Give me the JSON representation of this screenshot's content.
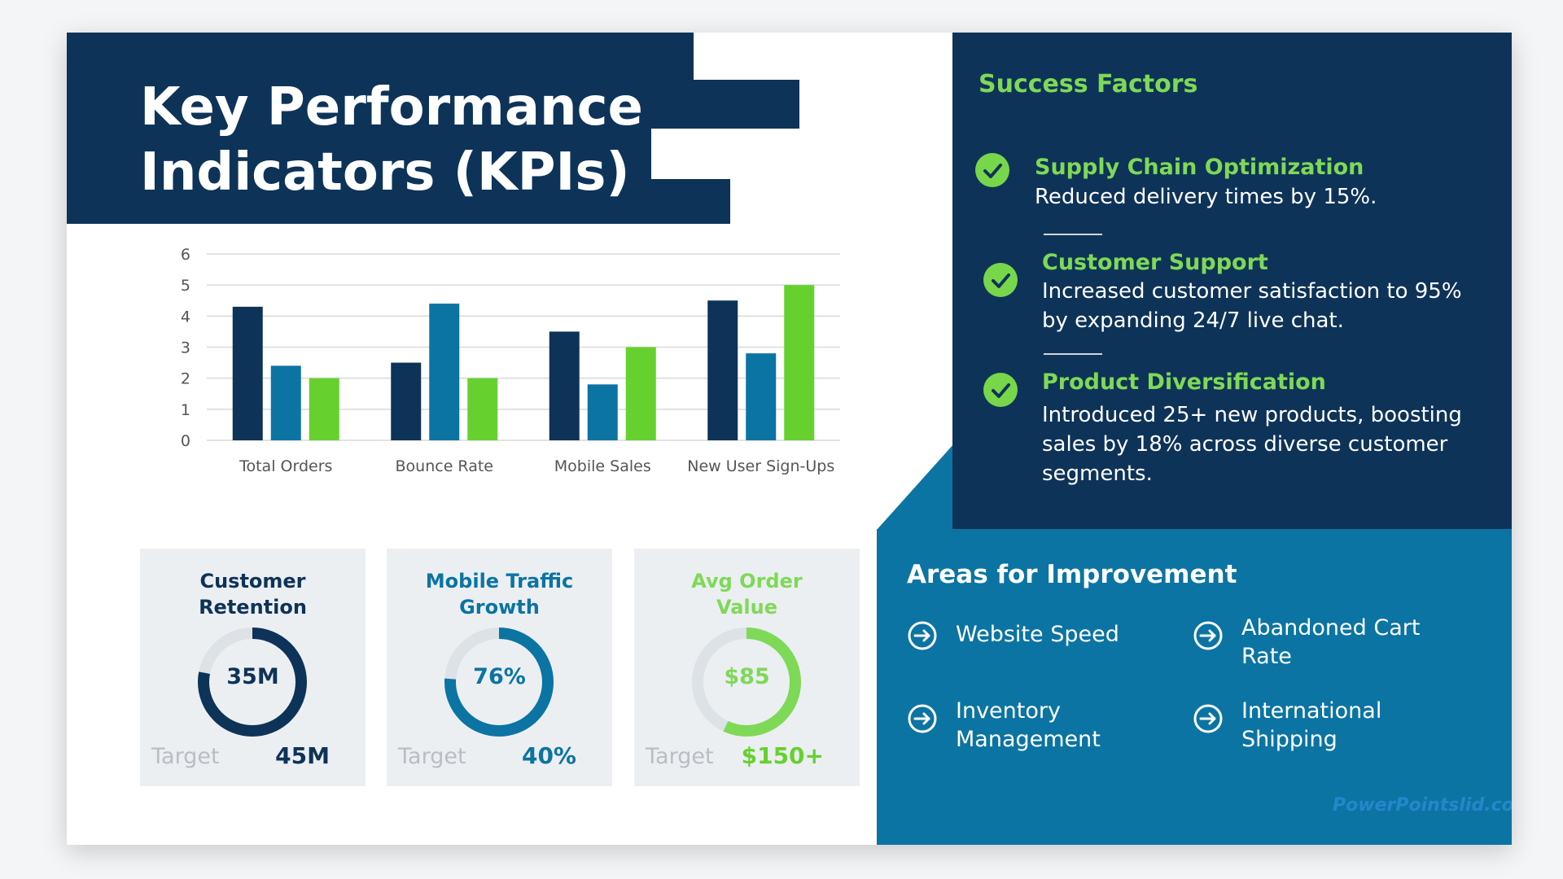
{
  "title": {
    "line1": "Key Performance",
    "line2": "Indicators (KPIs)"
  },
  "colors": {
    "navy": "#0e3358",
    "blue": "#0b74a3",
    "green": "#66d12e",
    "light_green": "#7ed957",
    "card_bg": "#eceff2"
  },
  "chart_data": {
    "type": "bar",
    "categories": [
      "Total Orders",
      "Bounce Rate",
      "Mobile Sales",
      "New User Sign-Ups"
    ],
    "series": [
      {
        "color": "#0e3358",
        "values": [
          4.3,
          2.5,
          3.5,
          4.5
        ]
      },
      {
        "color": "#0b74a3",
        "values": [
          2.4,
          4.4,
          1.8,
          2.8
        ]
      },
      {
        "color": "#66d12e",
        "values": [
          2.0,
          2.0,
          3.0,
          5.0
        ]
      }
    ],
    "ylim": [
      0,
      6
    ],
    "yticks": [
      0,
      1,
      2,
      3,
      4,
      5,
      6
    ],
    "grid": true,
    "title": "",
    "xlabel": "",
    "ylabel": ""
  },
  "kpis": [
    {
      "title_line1": "Customer",
      "title_line2": "Retention",
      "center": "35M",
      "fraction": 0.78,
      "target_label": "Target",
      "target_value": "45M",
      "color": "#0e3358"
    },
    {
      "title_line1": "Mobile Traffic",
      "title_line2": "Growth",
      "center": "76%",
      "fraction": 0.76,
      "target_label": "Target",
      "target_value": "40%",
      "color": "#0b74a3"
    },
    {
      "title_line1": "Avg Order",
      "title_line2": "Value",
      "center": "$85",
      "fraction": 0.57,
      "target_label": "Target",
      "target_value": "$150+",
      "color": "#7ed957"
    }
  ],
  "success_factors": {
    "title": "Success Factors",
    "items": [
      {
        "heading": "Supply Chain Optimization",
        "desc": "Reduced delivery times by 15%."
      },
      {
        "heading": "Customer Support",
        "desc": "Increased customer satisfaction to 95% by expanding 24/7 live chat."
      },
      {
        "heading": "Product Diversification",
        "desc": "Introduced 25+ new products, boosting sales by 18% across diverse customer segments."
      }
    ]
  },
  "improvement": {
    "title": "Areas for Improvement",
    "items": [
      {
        "label": "Website Speed",
        "icon": "arrow-circle-right-icon"
      },
      {
        "label": "Abandoned Cart Rate",
        "icon": "arrow-circle-right-icon"
      },
      {
        "label": "Inventory Management",
        "icon": "arrow-circle-right-icon"
      },
      {
        "label": "International Shipping",
        "icon": "arrow-circle-right-icon"
      }
    ]
  },
  "watermark": "PowerPointslid.com"
}
